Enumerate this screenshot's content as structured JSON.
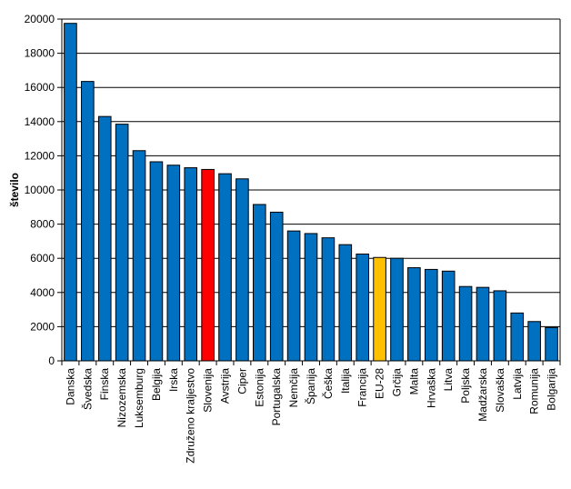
{
  "chart_data": {
    "type": "bar",
    "title": "",
    "xlabel": "",
    "ylabel": "število",
    "ylim": [
      0,
      20000
    ],
    "yticks": [
      0,
      2000,
      4000,
      6000,
      8000,
      10000,
      12000,
      14000,
      16000,
      18000,
      20000
    ],
    "grid": "horizontal",
    "legend": "none",
    "categories": [
      "Danska",
      "Švedska",
      "Finska",
      "Nizozemska",
      "Luksemburg",
      "Belgija",
      "Irska",
      "Združeno kraljestvo",
      "Slovenija",
      "Avstrija",
      "Ciper",
      "Estonija",
      "Portugalska",
      "Nemčija",
      "Španija",
      "Češka",
      "Italija",
      "Francija",
      "EU-28",
      "Grčija",
      "Malta",
      "Hrvaška",
      "Litva",
      "Poljska",
      "Madžarska",
      "Slovaška",
      "Latvija",
      "Romunija",
      "Bolgarija"
    ],
    "values": [
      19750,
      16350,
      14300,
      13850,
      12300,
      11650,
      11450,
      11300,
      11200,
      10950,
      10650,
      9150,
      8700,
      7600,
      7450,
      7200,
      6800,
      6250,
      6050,
      6000,
      5450,
      5350,
      5250,
      4350,
      4300,
      4100,
      2800,
      2300,
      1950
    ],
    "colors": {
      "default": "#0070C0",
      "highlights": {
        "Slovenija": "#FF0000",
        "EU-28": "#FFC000"
      },
      "bar_outline": "#000000",
      "grid": "#000000",
      "axis": "#000000"
    }
  }
}
